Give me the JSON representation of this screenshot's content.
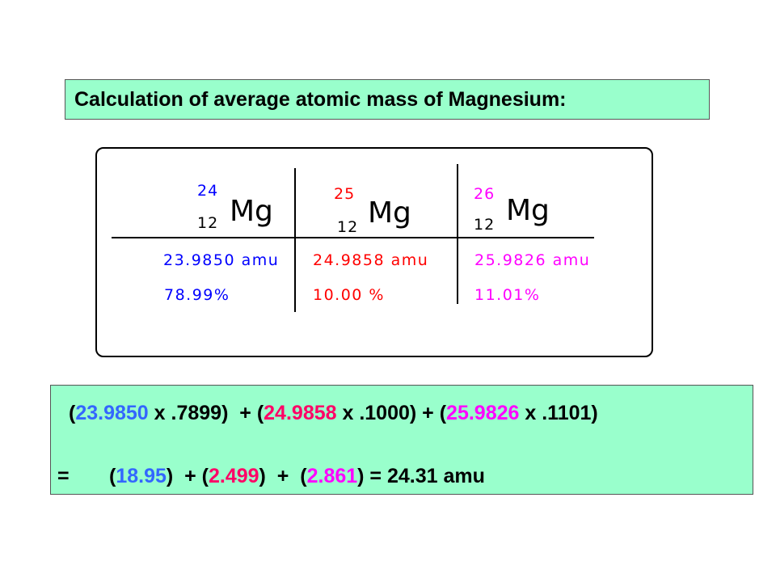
{
  "title": "Calculation of average atomic mass of Magnesium:",
  "isotopes": [
    {
      "mass_number": "24",
      "atomic_number": "12",
      "symbol": "Mg",
      "mass": "23.9850 amu",
      "abundance": "78.99%"
    },
    {
      "mass_number": "25",
      "atomic_number": "12",
      "symbol": "Mg",
      "mass": "24.9858 amu",
      "abundance": "10.00 %"
    },
    {
      "mass_number": "26",
      "atomic_number": "12",
      "symbol": "Mg",
      "mass": "25.9826 amu",
      "abundance": "11.01%"
    }
  ],
  "colors": {
    "isotope_24": "#0000ff",
    "isotope_25": "#ff0000",
    "isotope_26": "#ff00ff",
    "box_background": "#99ffcc"
  },
  "calculation": {
    "line1": {
      "open1": "(",
      "mass1": "23.9850",
      "times1": " x .7899",
      "close1": ")",
      "plus1": "  + (",
      "mass2": "24.9858",
      "times2": " x .1000",
      "close2": ")",
      "plus2": " + (",
      "mass3": "25.9826",
      "times3": " x .1101",
      "close3": ")"
    },
    "line2": {
      "equals": "=",
      "open1": "(",
      "prod1": "18.95",
      "close1": ")",
      "plus1": "  + (",
      "prod2": "2.499",
      "close2": ")",
      "plus2": "  +  (",
      "prod3": "2.861",
      "close3": ")",
      "result": " = 24.31 amu"
    }
  }
}
